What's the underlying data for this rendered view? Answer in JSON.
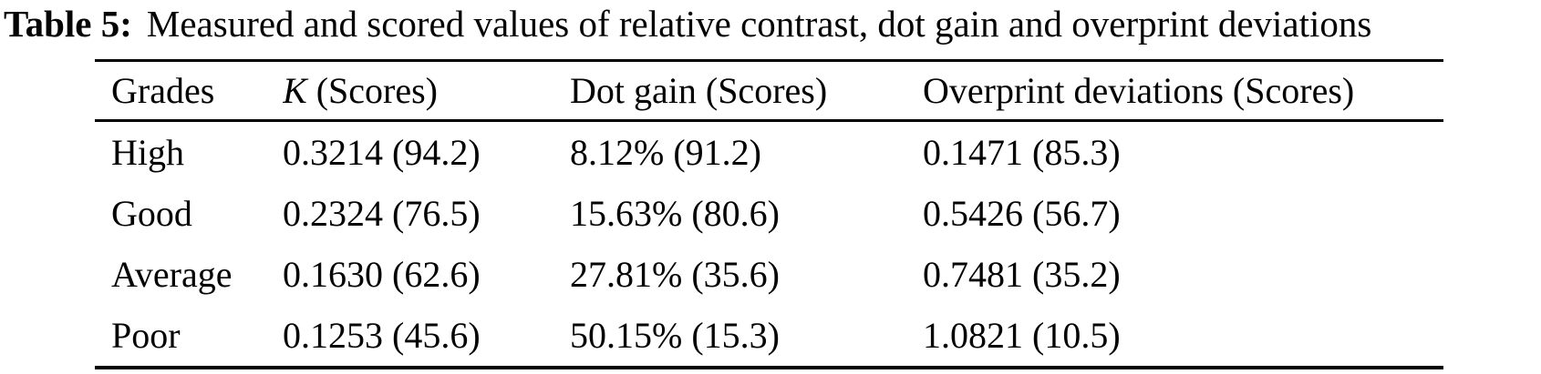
{
  "caption": {
    "label": "Table 5:",
    "text": "Measured and scored values of relative contrast, dot gain and overprint deviations"
  },
  "table": {
    "columns": [
      {
        "label": "Grades"
      },
      {
        "label_italic": "K",
        "label_rest": " (Scores)"
      },
      {
        "label": "Dot gain (Scores)"
      },
      {
        "label": "Overprint deviations (Scores)"
      }
    ],
    "rows": [
      {
        "cells": [
          "High",
          "0.3214 (94.2)",
          "8.12% (91.2)",
          "0.1471 (85.3)"
        ]
      },
      {
        "cells": [
          "Good",
          "0.2324 (76.5)",
          "15.63% (80.6)",
          "0.5426 (56.7)"
        ]
      },
      {
        "cells": [
          "Average",
          "0.1630 (62.6)",
          "27.81% (35.6)",
          "0.7481 (35.2)"
        ]
      },
      {
        "cells": [
          "Poor",
          "0.1253 (45.6)",
          "50.15% (15.3)",
          "1.0821 (10.5)"
        ]
      }
    ]
  }
}
